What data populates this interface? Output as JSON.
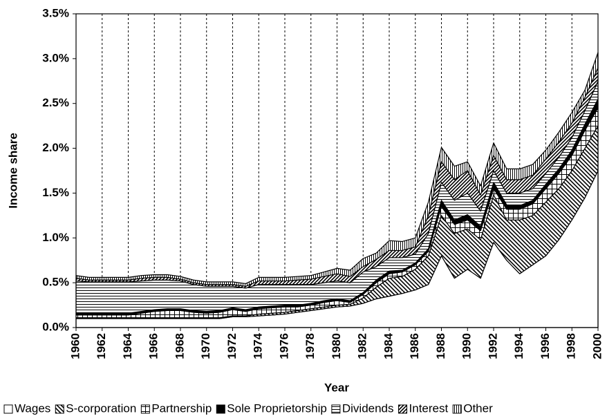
{
  "chart_data": {
    "type": "stacked-area",
    "y_label": "Income share",
    "x_label": "Year",
    "x": [
      1960,
      1961,
      1962,
      1963,
      1964,
      1965,
      1966,
      1967,
      1968,
      1969,
      1970,
      1971,
      1972,
      1973,
      1974,
      1975,
      1976,
      1977,
      1978,
      1979,
      1980,
      1981,
      1982,
      1983,
      1984,
      1985,
      1986,
      1987,
      1988,
      1989,
      1990,
      1991,
      1992,
      1993,
      1994,
      1995,
      1996,
      1997,
      1998,
      1999,
      2000
    ],
    "xlim": [
      1960,
      2000
    ],
    "xticks": [
      1960,
      1962,
      1964,
      1966,
      1968,
      1970,
      1972,
      1974,
      1976,
      1978,
      1980,
      1982,
      1984,
      1986,
      1988,
      1990,
      1992,
      1994,
      1996,
      1998,
      2000
    ],
    "ylim": [
      0,
      3.5
    ],
    "yticks": [
      {
        "value": 0,
        "label": "0.0%"
      },
      {
        "value": 0.5,
        "label": "0.5%"
      },
      {
        "value": 1,
        "label": "1.0%"
      },
      {
        "value": 1.5,
        "label": "1.5%"
      },
      {
        "value": 2,
        "label": "2.0%"
      },
      {
        "value": 2.5,
        "label": "2.5%"
      },
      {
        "value": 3,
        "label": "3.0%"
      },
      {
        "value": 3.5,
        "label": "3.5%"
      }
    ],
    "grid": "x",
    "series": [
      {
        "name": "Wages",
        "color": "#000000",
        "pattern": "none",
        "values": [
          0.1,
          0.1,
          0.1,
          0.1,
          0.1,
          0.1,
          0.1,
          0.1,
          0.1,
          0.1,
          0.1,
          0.1,
          0.12,
          0.12,
          0.13,
          0.14,
          0.15,
          0.17,
          0.19,
          0.21,
          0.23,
          0.24,
          0.27,
          0.32,
          0.35,
          0.38,
          0.42,
          0.48,
          0.8,
          0.55,
          0.65,
          0.55,
          0.95,
          0.75,
          0.6,
          0.7,
          0.8,
          0.98,
          1.2,
          1.45,
          1.75
        ]
      },
      {
        "name": "S-corporation",
        "color": "#000000",
        "pattern": "hatch-back",
        "values": [
          0.01,
          0.01,
          0.01,
          0.01,
          0.01,
          0.01,
          0.01,
          0.01,
          0.01,
          0.01,
          0.01,
          0.01,
          0.01,
          0.01,
          0.02,
          0.02,
          0.02,
          0.02,
          0.02,
          0.02,
          0.02,
          0.02,
          0.06,
          0.13,
          0.2,
          0.19,
          0.23,
          0.32,
          0.45,
          0.5,
          0.45,
          0.43,
          0.53,
          0.45,
          0.6,
          0.55,
          0.6,
          0.57,
          0.55,
          0.55,
          0.5
        ]
      },
      {
        "name": "Partnership",
        "color": "#000000",
        "pattern": "grid",
        "values": [
          0.03,
          0.03,
          0.03,
          0.03,
          0.03,
          0.05,
          0.07,
          0.08,
          0.08,
          0.06,
          0.05,
          0.06,
          0.07,
          0.05,
          0.06,
          0.06,
          0.06,
          0.04,
          0.04,
          0.05,
          0.05,
          0.02,
          0.04,
          0.05,
          0.05,
          0.05,
          0.05,
          0.05,
          0.1,
          0.1,
          0.1,
          0.1,
          0.07,
          0.12,
          0.12,
          0.13,
          0.15,
          0.17,
          0.17,
          0.2,
          0.2
        ]
      },
      {
        "name": "Sole Proprietorship",
        "color": "#000000",
        "pattern": "solid",
        "values": [
          0.02,
          0.02,
          0.02,
          0.02,
          0.02,
          0.02,
          0.02,
          0.02,
          0.02,
          0.02,
          0.02,
          0.02,
          0.02,
          0.02,
          0.02,
          0.02,
          0.02,
          0.02,
          0.02,
          0.02,
          0.02,
          0.02,
          0.02,
          0.03,
          0.03,
          0.02,
          0.02,
          0.03,
          0.07,
          0.05,
          0.06,
          0.05,
          0.07,
          0.05,
          0.04,
          0.04,
          0.05,
          0.05,
          0.06,
          0.07,
          0.1
        ]
      },
      {
        "name": "Dividends",
        "color": "#000000",
        "pattern": "horizontal",
        "values": [
          0.36,
          0.35,
          0.35,
          0.35,
          0.35,
          0.34,
          0.33,
          0.32,
          0.31,
          0.29,
          0.28,
          0.27,
          0.24,
          0.24,
          0.25,
          0.24,
          0.23,
          0.23,
          0.21,
          0.2,
          0.2,
          0.2,
          0.23,
          0.15,
          0.15,
          0.14,
          0.1,
          0.17,
          0.2,
          0.22,
          0.24,
          0.17,
          0.13,
          0.13,
          0.14,
          0.13,
          0.12,
          0.13,
          0.14,
          0.15,
          0.2
        ]
      },
      {
        "name": "Interest",
        "color": "#000000",
        "pattern": "hatch-forward",
        "values": [
          0.03,
          0.02,
          0.02,
          0.02,
          0.02,
          0.03,
          0.03,
          0.03,
          0.02,
          0.02,
          0.02,
          0.02,
          0.02,
          0.02,
          0.04,
          0.04,
          0.04,
          0.05,
          0.06,
          0.07,
          0.08,
          0.07,
          0.06,
          0.08,
          0.08,
          0.08,
          0.08,
          0.2,
          0.23,
          0.23,
          0.25,
          0.18,
          0.17,
          0.15,
          0.15,
          0.15,
          0.16,
          0.17,
          0.16,
          0.15,
          0.15
        ]
      },
      {
        "name": "Other",
        "color": "#000000",
        "pattern": "vertical",
        "values": [
          0.03,
          0.03,
          0.03,
          0.03,
          0.03,
          0.03,
          0.03,
          0.03,
          0.03,
          0.03,
          0.03,
          0.03,
          0.03,
          0.03,
          0.04,
          0.04,
          0.04,
          0.04,
          0.04,
          0.05,
          0.06,
          0.07,
          0.09,
          0.07,
          0.11,
          0.1,
          0.1,
          0.15,
          0.16,
          0.15,
          0.1,
          0.1,
          0.14,
          0.12,
          0.12,
          0.12,
          0.1,
          0.11,
          0.12,
          0.08,
          0.17
        ]
      }
    ]
  }
}
